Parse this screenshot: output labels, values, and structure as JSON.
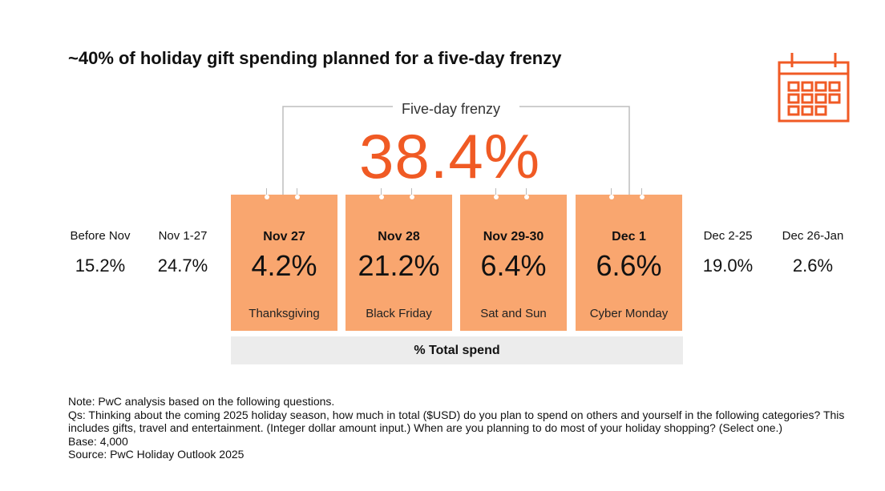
{
  "title": "~40% of holiday gift spending planned for a five-day frenzy",
  "frenzy": {
    "label": "Five-day frenzy",
    "value": "38.4%"
  },
  "colors": {
    "accent": "#f05a24",
    "card": "#f9a66f",
    "bar": "#ececec"
  },
  "chart_data": {
    "type": "table",
    "title": "~40% of holiday gift spending planned for a five-day frenzy",
    "measure": "% Total spend",
    "periods": [
      {
        "date": "Before Nov",
        "value": 15.2,
        "label": "15.2%",
        "highlight": false,
        "occasion": ""
      },
      {
        "date": "Nov 1-27",
        "value": 24.7,
        "label": "24.7%",
        "highlight": false,
        "occasion": ""
      },
      {
        "date": "Nov 27",
        "value": 4.2,
        "label": "4.2%",
        "highlight": true,
        "occasion": "Thanksgiving"
      },
      {
        "date": "Nov 28",
        "value": 21.2,
        "label": "21.2%",
        "highlight": true,
        "occasion": "Black Friday"
      },
      {
        "date": "Nov 29-30",
        "value": 6.4,
        "label": "6.4%",
        "highlight": true,
        "occasion": "Sat and Sun"
      },
      {
        "date": "Dec 1",
        "value": 6.6,
        "label": "6.6%",
        "highlight": true,
        "occasion": "Cyber Monday"
      },
      {
        "date": "Dec 2-25",
        "value": 19.0,
        "label": "19.0%",
        "highlight": false,
        "occasion": ""
      },
      {
        "date": "Dec 26-Jan",
        "value": 2.6,
        "label": "2.6%",
        "highlight": false,
        "occasion": ""
      }
    ],
    "highlight_total": {
      "label": "Five-day frenzy",
      "value": 38.4
    }
  },
  "total_label": "% Total spend",
  "notes": [
    "Note: PwC analysis based on the following questions.",
    "Qs: Thinking about the coming 2025 holiday season, how much in total ($USD) do you plan to spend on others and yourself in the following categories? This includes gifts, travel and entertainment. (Integer dollar amount input.) When are you planning to do most of your holiday shopping? (Select one.)",
    "Base: 4,000",
    "Source: PwC Holiday Outlook 2025"
  ],
  "icon": "calendar-icon"
}
